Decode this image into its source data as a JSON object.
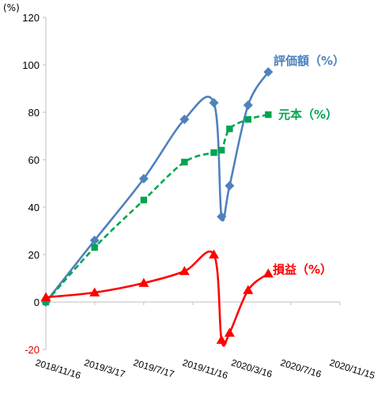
{
  "chart_data": {
    "type": "line",
    "y_unit_label": "(%)",
    "ylim": [
      -20,
      120
    ],
    "y_ticks": [
      -20,
      0,
      20,
      40,
      60,
      80,
      100,
      120
    ],
    "x_tick_labels": [
      "2018/11/16",
      "2019/3/17",
      "2019/7/17",
      "2019/11/16",
      "2020/3/16",
      "2020/7/16",
      "2020/11/15"
    ],
    "x_range": [
      "2018/11/16",
      "2020/11/15"
    ],
    "grid": false,
    "series": [
      {
        "name": "評価額（%）",
        "color": "#4f81bd",
        "marker": "diamond",
        "line_style": "solid",
        "points": [
          {
            "x": "2018/11/16",
            "y": 0
          },
          {
            "x": "2019/3/17",
            "y": 26
          },
          {
            "x": "2019/7/17",
            "y": 52
          },
          {
            "x": "2019/10/26",
            "y": 77
          },
          {
            "x": "2020/1/7",
            "y": 84
          },
          {
            "x": "2020/1/26",
            "y": 36
          },
          {
            "x": "2020/2/15",
            "y": 49
          },
          {
            "x": "2020/4/1",
            "y": 83
          },
          {
            "x": "2020/5/21",
            "y": 97
          }
        ]
      },
      {
        "name": "元本（%）",
        "color": "#00a550",
        "marker": "square",
        "line_style": "dashed",
        "points": [
          {
            "x": "2018/11/16",
            "y": 0
          },
          {
            "x": "2019/3/17",
            "y": 23
          },
          {
            "x": "2019/7/17",
            "y": 43
          },
          {
            "x": "2019/10/26",
            "y": 59
          },
          {
            "x": "2020/1/7",
            "y": 63
          },
          {
            "x": "2020/1/26",
            "y": 64
          },
          {
            "x": "2020/2/15",
            "y": 73
          },
          {
            "x": "2020/4/1",
            "y": 77
          },
          {
            "x": "2020/5/21",
            "y": 79
          }
        ]
      },
      {
        "name": "損益（%）",
        "color": "#ff0000",
        "marker": "triangle",
        "line_style": "solid",
        "points": [
          {
            "x": "2018/11/16",
            "y": 2
          },
          {
            "x": "2019/3/17",
            "y": 4
          },
          {
            "x": "2019/7/17",
            "y": 8
          },
          {
            "x": "2019/10/26",
            "y": 13
          },
          {
            "x": "2020/1/7",
            "y": 20
          },
          {
            "x": "2020/1/26",
            "y": -16
          },
          {
            "x": "2020/2/15",
            "y": -13
          },
          {
            "x": "2020/4/1",
            "y": 5
          },
          {
            "x": "2020/5/21",
            "y": 12
          }
        ]
      }
    ]
  }
}
